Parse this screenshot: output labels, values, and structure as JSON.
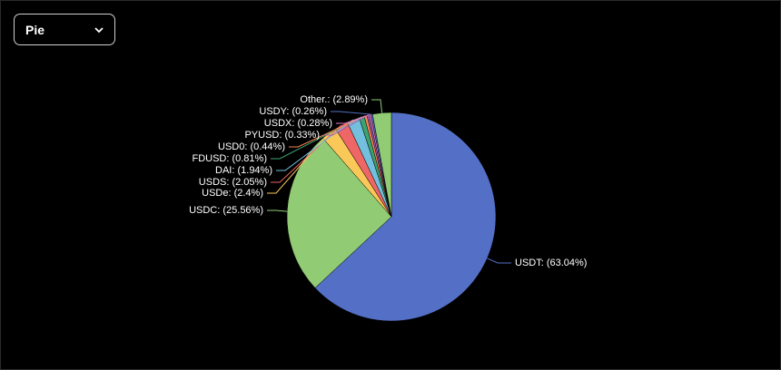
{
  "dropdown": {
    "label": "Pie"
  },
  "chart_data": {
    "type": "pie",
    "values": [
      63.04,
      25.56,
      2.4,
      2.05,
      1.94,
      0.81,
      0.44,
      0.33,
      0.28,
      0.26,
      2.89
    ],
    "value_labels": [
      "USDT: (63.04%)",
      "USDC: (25.56%)",
      "USDe: (2.4%)",
      "USDS: (2.05%)",
      "DAI: (1.94%)",
      "FDUSD: (0.81%)",
      "USD0: (0.44%)",
      "PYUSD: (0.33%)",
      "USDX: (0.28%)",
      "USDY: (0.26%)",
      "Other.: (2.89%)"
    ],
    "colors": [
      "#5470c6",
      "#91cc75",
      "#fac858",
      "#ee6666",
      "#73c0de",
      "#3ba272",
      "#fc8452",
      "#9a60b4",
      "#ea7ccc",
      "#5470c6",
      "#91cc75"
    ]
  }
}
